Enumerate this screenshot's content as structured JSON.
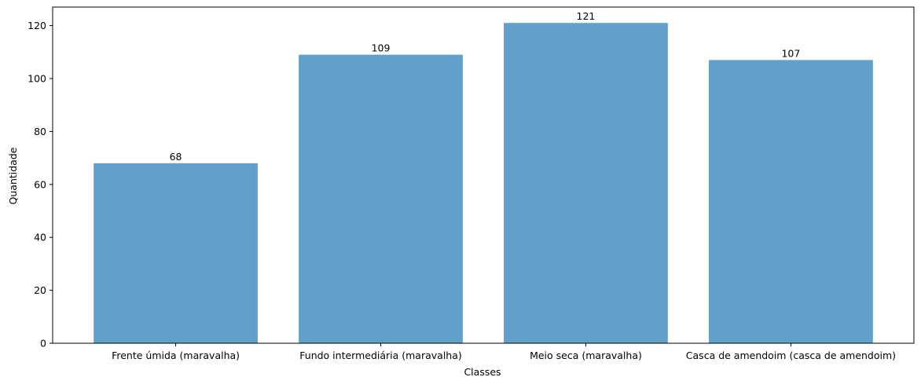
{
  "chart_data": {
    "type": "bar",
    "title": "",
    "xlabel": "Classes",
    "ylabel": "Quantidade",
    "categories": [
      "Frente úmida (maravalha)",
      "Fundo intermediária (maravalha)",
      "Meio seca (maravalha)",
      "Casca de amendoim (casca de amendoim)"
    ],
    "values": [
      68,
      109,
      121,
      107
    ],
    "data_labels": [
      "68",
      "109",
      "121",
      "107"
    ],
    "ylim": [
      0,
      127
    ],
    "yticks": [
      0,
      20,
      40,
      60,
      80,
      100,
      120
    ],
    "grid": false,
    "legend": "none",
    "bar_color": "#62a0cb"
  }
}
